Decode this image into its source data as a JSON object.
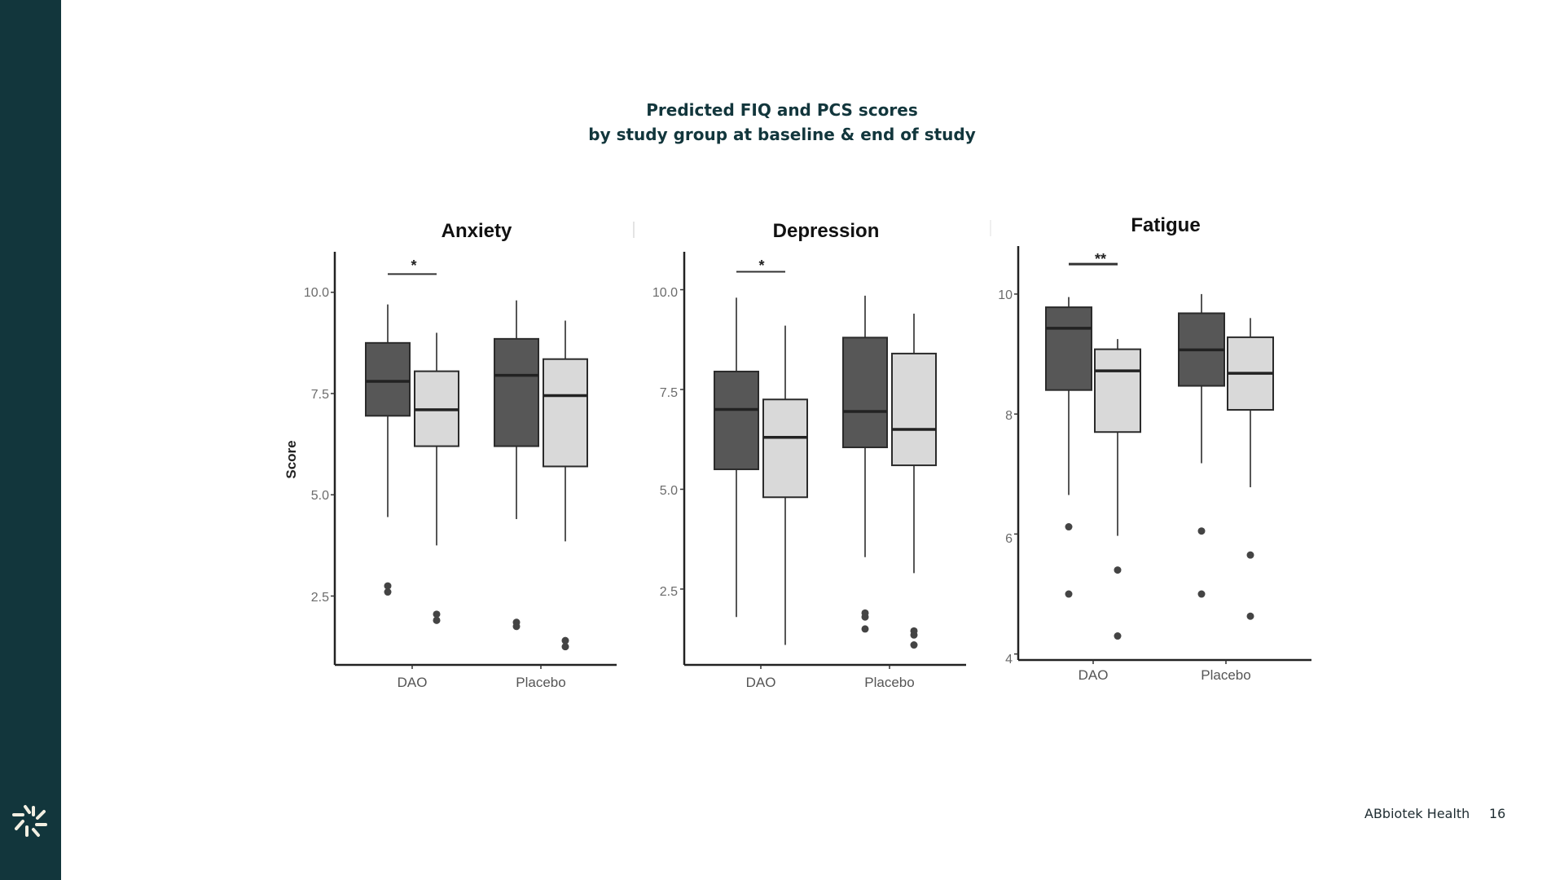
{
  "slide": {
    "title_line1": "Predicted FIQ and PCS scores",
    "title_line2": "by study group at baseline & end of study",
    "footer_brand": "ABbiotek Health",
    "page_number": "16",
    "logo_icon": "starburst-logo-icon"
  },
  "colors": {
    "sidebar": "#12363c",
    "title": "#12363c",
    "baseline_fill": "#575757",
    "end_fill": "#d9d9d9",
    "outline": "#2b2b2b"
  },
  "chart_data": [
    {
      "type": "box",
      "title": "Anxiety",
      "ylabel": "Score",
      "xlabel": "",
      "categories": [
        "DAO",
        "Placebo"
      ],
      "yticks": [
        "2.5",
        "5.0",
        "7.5",
        "10.0"
      ],
      "ytick_values": [
        2.5,
        5.0,
        7.5,
        10.0
      ],
      "ylim": [
        0.8,
        11.0
      ],
      "grid": false,
      "series": [
        {
          "name": "baseline",
          "boxes": [
            {
              "category": "DAO",
              "whisker_low": 4.45,
              "q1": 6.95,
              "median": 7.8,
              "q3": 8.75,
              "whisker_high": 9.7,
              "outliers": [
                2.75,
                2.6
              ]
            },
            {
              "category": "Placebo",
              "whisker_low": 4.4,
              "q1": 6.2,
              "median": 7.95,
              "q3": 8.85,
              "whisker_high": 9.8,
              "outliers": [
                1.85,
                1.75
              ]
            }
          ]
        },
        {
          "name": "end of study",
          "boxes": [
            {
              "category": "DAO",
              "whisker_low": 3.75,
              "q1": 6.2,
              "median": 7.1,
              "q3": 8.05,
              "whisker_high": 9.0,
              "outliers": [
                2.05,
                1.9
              ]
            },
            {
              "category": "Placebo",
              "whisker_low": 3.85,
              "q1": 5.7,
              "median": 7.45,
              "q3": 8.35,
              "whisker_high": 9.3,
              "outliers": [
                1.4,
                1.25
              ]
            }
          ]
        }
      ],
      "annotations": [
        {
          "category": "DAO",
          "label": "*",
          "y": 10.45
        }
      ]
    },
    {
      "type": "box",
      "title": "Depression",
      "ylabel": "",
      "xlabel": "",
      "categories": [
        "DAO",
        "Placebo"
      ],
      "yticks": [
        "2.5",
        "5.0",
        "7.5",
        "10.0"
      ],
      "ytick_values": [
        2.5,
        5.0,
        7.5,
        10.0
      ],
      "ylim": [
        0.6,
        10.95
      ],
      "grid": false,
      "series": [
        {
          "name": "baseline",
          "boxes": [
            {
              "category": "DAO",
              "whisker_low": 1.8,
              "q1": 5.5,
              "median": 7.0,
              "q3": 7.95,
              "whisker_high": 9.8,
              "outliers": []
            },
            {
              "category": "Placebo",
              "whisker_low": 3.3,
              "q1": 6.05,
              "median": 6.95,
              "q3": 8.8,
              "whisker_high": 9.85,
              "outliers": [
                1.9,
                1.8,
                1.5
              ]
            }
          ]
        },
        {
          "name": "end of study",
          "boxes": [
            {
              "category": "DAO",
              "whisker_low": 1.1,
              "q1": 4.8,
              "median": 6.3,
              "q3": 7.25,
              "whisker_high": 9.1,
              "outliers": []
            },
            {
              "category": "Placebo",
              "whisker_low": 2.9,
              "q1": 5.6,
              "median": 6.5,
              "q3": 8.4,
              "whisker_high": 9.4,
              "outliers": [
                1.45,
                1.35,
                1.1
              ]
            }
          ]
        }
      ],
      "annotations": [
        {
          "category": "DAO",
          "label": "*",
          "y": 10.45
        }
      ]
    },
    {
      "type": "box",
      "title": "Fatigue",
      "ylabel": "",
      "xlabel": "",
      "categories": [
        "DAO",
        "Placebo"
      ],
      "yticks": [
        "4",
        "6",
        "8",
        "10"
      ],
      "ytick_values": [
        4,
        6,
        8,
        10
      ],
      "ylim": [
        3.9,
        10.8
      ],
      "grid": false,
      "series": [
        {
          "name": "baseline",
          "boxes": [
            {
              "category": "DAO",
              "whisker_low": 6.65,
              "q1": 8.4,
              "median": 9.43,
              "q3": 9.78,
              "whisker_high": 9.95,
              "outliers": [
                6.12,
                5.0
              ]
            },
            {
              "category": "Placebo",
              "whisker_low": 7.18,
              "q1": 8.47,
              "median": 9.07,
              "q3": 9.68,
              "whisker_high": 10.0,
              "outliers": [
                6.05,
                5.0
              ]
            }
          ]
        },
        {
          "name": "end of study",
          "boxes": [
            {
              "category": "DAO",
              "whisker_low": 5.97,
              "q1": 7.7,
              "median": 8.72,
              "q3": 9.08,
              "whisker_high": 9.25,
              "outliers": [
                5.4,
                4.3
              ]
            },
            {
              "category": "Placebo",
              "whisker_low": 6.78,
              "q1": 8.07,
              "median": 8.68,
              "q3": 9.28,
              "whisker_high": 9.6,
              "outliers": [
                5.65,
                4.63
              ]
            }
          ]
        }
      ],
      "annotations": [
        {
          "category": "DAO",
          "label": "**",
          "y": 10.5
        }
      ]
    }
  ]
}
